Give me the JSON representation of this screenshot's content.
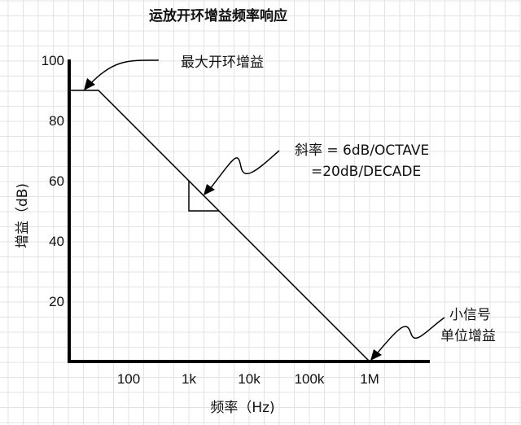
{
  "chart_data": {
    "type": "line",
    "title": "运放开环增益频率响应",
    "xlabel": "频率（Hz)",
    "ylabel": "增益（dB)",
    "x_scale": "log",
    "xlim": [
      10,
      10000000
    ],
    "ylim": [
      0,
      100
    ],
    "grid": true,
    "x_ticks": [
      {
        "value": 100,
        "label": "100"
      },
      {
        "value": 1000,
        "label": "1k"
      },
      {
        "value": 10000,
        "label": "10k"
      },
      {
        "value": 100000,
        "label": "100k"
      },
      {
        "value": 1000000,
        "label": "1M"
      }
    ],
    "y_ticks": [
      {
        "value": 20,
        "label": "20"
      },
      {
        "value": 40,
        "label": "40"
      },
      {
        "value": 60,
        "label": "60"
      },
      {
        "value": 80,
        "label": "80"
      },
      {
        "value": 100,
        "label": "100"
      }
    ],
    "series": [
      {
        "points": [
          [
            11,
            90
          ],
          [
            31.6,
            90
          ],
          [
            1000000,
            0
          ]
        ],
        "color": "#000000"
      }
    ],
    "slope_triangle": [
      [
        1000,
        60
      ],
      [
        1000,
        50
      ],
      [
        3162,
        50
      ]
    ],
    "annotations": [
      {
        "lines": [
          "最大开环增益"
        ],
        "target": [
          31.6,
          90
        ]
      },
      {
        "lines": [
          "斜率 = 6dB/OCTAVE",
          "=20dB/DECADE"
        ],
        "target": [
          1500,
          56.5
        ]
      },
      {
        "lines": [
          "小信号",
          "单位增益"
        ],
        "target": [
          1000000,
          0
        ]
      }
    ]
  }
}
